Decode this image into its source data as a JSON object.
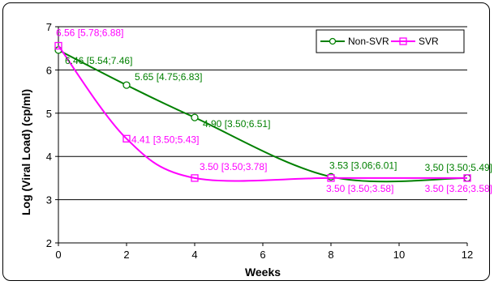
{
  "chart_data": {
    "type": "line",
    "title": "",
    "xlabel": "Weeks",
    "ylabel": "Log (Viral Load) (cp/ml)",
    "xlim": [
      0,
      12
    ],
    "ylim": [
      2,
      7
    ],
    "xticks": [
      "0",
      "2",
      "4",
      "6",
      "8",
      "10",
      "12"
    ],
    "yticks": [
      "2",
      "3",
      "4",
      "5",
      "6",
      "7"
    ],
    "grid": "horizontal",
    "legend_position": "top-right",
    "series": [
      {
        "name": "Non-SVR",
        "color": "#008000",
        "marker": "circle",
        "x": [
          0,
          2,
          4,
          8,
          12
        ],
        "y": [
          6.46,
          5.65,
          4.9,
          3.53,
          3.5
        ],
        "labels": [
          "6.46 [5.54;7.46]",
          "5.65 [4.75;6.83]",
          "4.90 [3.50;6.51]",
          "3.53 [3.06;6.01]",
          "3,50 [3.50;5.49]"
        ]
      },
      {
        "name": "SVR",
        "color": "#ff00ff",
        "marker": "square",
        "x": [
          0,
          2,
          4,
          8,
          12
        ],
        "y": [
          6.56,
          4.41,
          3.5,
          3.5,
          3.5
        ],
        "labels": [
          "6.56 [5.78;6.88]",
          "4.41 [3.50;5.43]",
          "3.50 [3.50;3.78]",
          "3.50 [3.50;3.58]",
          "3.50 [3.26;3.58]"
        ]
      }
    ]
  }
}
